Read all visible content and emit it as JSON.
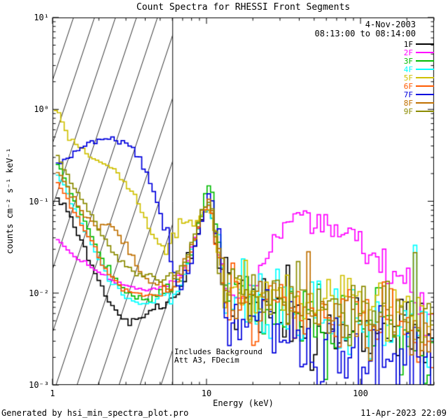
{
  "title": "Count Spectra for RHESSI Front Segments",
  "annotations": {
    "date": "4-Nov-2003",
    "interval": "08:13:00 to 08:14:00",
    "background_note": "Includes Background",
    "atten_note": "Att A3, FDecim"
  },
  "footer": {
    "left": "Generated by hsi_min_spectra_plot.pro",
    "right": "11-Apr-2023 22:09"
  },
  "axes": {
    "xlabel": "Energy (keV)",
    "ylabel": "counts cm⁻² s⁻¹ keV⁻¹",
    "x_ticks": [
      {
        "label": "1",
        "value": 1
      },
      {
        "label": "10",
        "value": 10
      },
      {
        "label": "100",
        "value": 100
      }
    ],
    "y_ticks": [
      {
        "label": "10⁻³",
        "value": 0.001
      },
      {
        "label": "10⁻²",
        "value": 0.01
      },
      {
        "label": "10⁻¹",
        "value": 0.1
      },
      {
        "label": "10⁰",
        "value": 1
      },
      {
        "label": "10¹",
        "value": 10
      }
    ]
  },
  "chart_data": {
    "type": "line",
    "mode": "histogram-steps",
    "xscale": "log",
    "yscale": "log",
    "xlim": [
      1,
      300
    ],
    "ylim": [
      0.001,
      10
    ],
    "grid": false,
    "legend_position": "top-right-inside",
    "hatched_region": {
      "xmin": 1,
      "xmax": 6
    },
    "vline_x": 6,
    "series": [
      {
        "name": "1F",
        "color": "#000000",
        "jitter": 0.5,
        "points": [
          [
            1.05,
            0.105
          ],
          [
            1.2,
            0.09
          ],
          [
            1.35,
            0.06
          ],
          [
            1.55,
            0.035
          ],
          [
            1.8,
            0.02
          ],
          [
            2.1,
            0.011
          ],
          [
            2.5,
            0.007
          ],
          [
            3.0,
            0.005
          ],
          [
            3.4,
            0.0045
          ],
          [
            4.0,
            0.006
          ],
          [
            5.0,
            0.008
          ],
          [
            6.0,
            0.01
          ],
          [
            7.0,
            0.014
          ],
          [
            8.0,
            0.028
          ],
          [
            9.0,
            0.05
          ],
          [
            10.0,
            0.08
          ],
          [
            10.6,
            0.09
          ],
          [
            11.2,
            0.05
          ],
          [
            12.0,
            0.02
          ],
          [
            13.0,
            0.01
          ],
          [
            15.0,
            0.0075
          ],
          [
            18.0,
            0.0065
          ],
          [
            25,
            0.006
          ],
          [
            40,
            0.0055
          ],
          [
            70,
            0.005
          ],
          [
            120,
            0.004
          ],
          [
            200,
            0.003
          ],
          [
            300,
            0.002
          ]
        ]
      },
      {
        "name": "2F",
        "color": "#ff00ff",
        "jitter": 0.22,
        "points": [
          [
            1.05,
            0.04
          ],
          [
            1.2,
            0.032
          ],
          [
            1.4,
            0.025
          ],
          [
            1.7,
            0.02
          ],
          [
            2.0,
            0.017
          ],
          [
            2.4,
            0.014
          ],
          [
            3.0,
            0.012
          ],
          [
            4.0,
            0.011
          ],
          [
            5.0,
            0.011
          ],
          [
            6.0,
            0.013
          ],
          [
            7.0,
            0.017
          ],
          [
            8.0,
            0.032
          ],
          [
            9.0,
            0.058
          ],
          [
            10.0,
            0.088
          ],
          [
            10.6,
            0.095
          ],
          [
            11.2,
            0.058
          ],
          [
            12.0,
            0.028
          ],
          [
            13.0,
            0.014
          ],
          [
            16.0,
            0.01
          ],
          [
            19.0,
            0.012
          ],
          [
            23,
            0.02
          ],
          [
            27,
            0.038
          ],
          [
            32,
            0.058
          ],
          [
            38,
            0.07
          ],
          [
            45,
            0.072
          ],
          [
            55,
            0.062
          ],
          [
            65,
            0.05
          ],
          [
            80,
            0.042
          ],
          [
            95,
            0.036
          ],
          [
            115,
            0.028
          ],
          [
            140,
            0.021
          ],
          [
            170,
            0.016
          ],
          [
            210,
            0.011
          ],
          [
            260,
            0.007
          ],
          [
            300,
            0.005
          ]
        ]
      },
      {
        "name": "3F",
        "color": "#00bb00",
        "jitter": 0.5,
        "points": [
          [
            1.05,
            0.28
          ],
          [
            1.2,
            0.18
          ],
          [
            1.4,
            0.1
          ],
          [
            1.7,
            0.05
          ],
          [
            2.0,
            0.028
          ],
          [
            2.4,
            0.016
          ],
          [
            3.0,
            0.01
          ],
          [
            3.5,
            0.009
          ],
          [
            4.0,
            0.0085
          ],
          [
            5.0,
            0.009
          ],
          [
            6.0,
            0.011
          ],
          [
            7.0,
            0.015
          ],
          [
            8.0,
            0.03
          ],
          [
            9.0,
            0.06
          ],
          [
            10.0,
            0.12
          ],
          [
            10.6,
            0.16
          ],
          [
            11.2,
            0.08
          ],
          [
            12.0,
            0.028
          ],
          [
            13.0,
            0.012
          ],
          [
            15.0,
            0.008
          ],
          [
            18.0,
            0.007
          ],
          [
            25,
            0.0065
          ],
          [
            40,
            0.006
          ],
          [
            70,
            0.005
          ],
          [
            120,
            0.004
          ],
          [
            200,
            0.003
          ],
          [
            300,
            0.0024
          ]
        ]
      },
      {
        "name": "4F",
        "color": "#00ffff",
        "jitter": 0.5,
        "points": [
          [
            1.05,
            0.21
          ],
          [
            1.2,
            0.14
          ],
          [
            1.4,
            0.08
          ],
          [
            1.7,
            0.04
          ],
          [
            2.0,
            0.023
          ],
          [
            2.4,
            0.013
          ],
          [
            3.0,
            0.009
          ],
          [
            3.5,
            0.008
          ],
          [
            4.0,
            0.0078
          ],
          [
            5.0,
            0.009
          ],
          [
            6.0,
            0.011
          ],
          [
            7.0,
            0.015
          ],
          [
            8.0,
            0.028
          ],
          [
            9.0,
            0.055
          ],
          [
            10.0,
            0.09
          ],
          [
            10.6,
            0.1
          ],
          [
            11.2,
            0.055
          ],
          [
            12.0,
            0.023
          ],
          [
            13.0,
            0.011
          ],
          [
            15.0,
            0.008
          ],
          [
            18.0,
            0.0075
          ],
          [
            25,
            0.007
          ],
          [
            40,
            0.0065
          ],
          [
            70,
            0.006
          ],
          [
            120,
            0.005
          ],
          [
            200,
            0.0042
          ],
          [
            300,
            0.0032
          ]
        ]
      },
      {
        "name": "5F",
        "color": "#cfc000",
        "jitter": 0.35,
        "points": [
          [
            1.02,
            1.0
          ],
          [
            1.1,
            0.92
          ],
          [
            1.2,
            0.62
          ],
          [
            1.35,
            0.45
          ],
          [
            1.55,
            0.36
          ],
          [
            1.75,
            0.31
          ],
          [
            2.0,
            0.28
          ],
          [
            2.3,
            0.25
          ],
          [
            2.6,
            0.21
          ],
          [
            3.0,
            0.16
          ],
          [
            3.4,
            0.115
          ],
          [
            3.9,
            0.07
          ],
          [
            4.4,
            0.045
          ],
          [
            5.0,
            0.034
          ],
          [
            5.5,
            0.031
          ],
          [
            6.0,
            0.036
          ],
          [
            6.5,
            0.05
          ],
          [
            7.0,
            0.06
          ],
          [
            7.6,
            0.055
          ],
          [
            8.2,
            0.052
          ],
          [
            9.0,
            0.065
          ],
          [
            10.0,
            0.082
          ],
          [
            10.6,
            0.078
          ],
          [
            11.2,
            0.05
          ],
          [
            12.0,
            0.026
          ],
          [
            13.0,
            0.014
          ],
          [
            15.0,
            0.01
          ],
          [
            18.0,
            0.009
          ],
          [
            25,
            0.009
          ],
          [
            40,
            0.009
          ],
          [
            70,
            0.008
          ],
          [
            120,
            0.007
          ],
          [
            200,
            0.006
          ],
          [
            300,
            0.005
          ]
        ]
      },
      {
        "name": "6F",
        "color": "#ff5a00",
        "jitter": 0.45,
        "points": [
          [
            1.05,
            0.17
          ],
          [
            1.2,
            0.12
          ],
          [
            1.4,
            0.075
          ],
          [
            1.7,
            0.042
          ],
          [
            2.0,
            0.025
          ],
          [
            2.4,
            0.015
          ],
          [
            3.0,
            0.011
          ],
          [
            3.5,
            0.01
          ],
          [
            4.0,
            0.0095
          ],
          [
            5.0,
            0.01
          ],
          [
            6.0,
            0.012
          ],
          [
            7.0,
            0.016
          ],
          [
            8.0,
            0.03
          ],
          [
            9.0,
            0.055
          ],
          [
            10.0,
            0.085
          ],
          [
            10.6,
            0.09
          ],
          [
            11.2,
            0.05
          ],
          [
            12.0,
            0.022
          ],
          [
            13.0,
            0.012
          ],
          [
            15.0,
            0.009
          ],
          [
            18.0,
            0.008
          ],
          [
            25,
            0.0075
          ],
          [
            40,
            0.007
          ],
          [
            70,
            0.006
          ],
          [
            120,
            0.005
          ],
          [
            200,
            0.004
          ],
          [
            300,
            0.003
          ]
        ]
      },
      {
        "name": "7F",
        "color": "#0000dd",
        "jitter": 0.5,
        "points": [
          [
            1.05,
            0.26
          ],
          [
            1.2,
            0.29
          ],
          [
            1.4,
            0.33
          ],
          [
            1.6,
            0.38
          ],
          [
            1.8,
            0.42
          ],
          [
            2.0,
            0.45
          ],
          [
            2.2,
            0.46
          ],
          [
            2.5,
            0.46
          ],
          [
            2.8,
            0.44
          ],
          [
            3.1,
            0.4
          ],
          [
            3.4,
            0.34
          ],
          [
            3.8,
            0.26
          ],
          [
            4.2,
            0.18
          ],
          [
            4.6,
            0.12
          ],
          [
            5.0,
            0.075
          ],
          [
            5.5,
            0.042
          ],
          [
            6.0,
            0.024
          ],
          [
            6.5,
            0.015
          ],
          [
            7.0,
            0.012
          ],
          [
            8.0,
            0.024
          ],
          [
            9.0,
            0.05
          ],
          [
            10.0,
            0.1
          ],
          [
            10.6,
            0.13
          ],
          [
            11.2,
            0.065
          ],
          [
            12.0,
            0.024
          ],
          [
            13.0,
            0.01
          ],
          [
            15.0,
            0.006
          ],
          [
            18.0,
            0.0045
          ],
          [
            25,
            0.0035
          ],
          [
            40,
            0.003
          ],
          [
            70,
            0.0026
          ],
          [
            120,
            0.0022
          ],
          [
            200,
            0.0018
          ],
          [
            300,
            0.0015
          ]
        ]
      },
      {
        "name": "8F",
        "color": "#c07000",
        "jitter": 0.45,
        "points": [
          [
            1.05,
            0.23
          ],
          [
            1.2,
            0.16
          ],
          [
            1.4,
            0.1
          ],
          [
            1.7,
            0.065
          ],
          [
            2.0,
            0.052
          ],
          [
            2.3,
            0.055
          ],
          [
            2.6,
            0.048
          ],
          [
            3.0,
            0.033
          ],
          [
            3.5,
            0.02
          ],
          [
            4.0,
            0.014
          ],
          [
            5.0,
            0.012
          ],
          [
            6.0,
            0.013
          ],
          [
            7.0,
            0.018
          ],
          [
            8.0,
            0.032
          ],
          [
            9.0,
            0.06
          ],
          [
            10.0,
            0.095
          ],
          [
            10.6,
            0.1
          ],
          [
            11.2,
            0.055
          ],
          [
            12.0,
            0.025
          ],
          [
            13.0,
            0.013
          ],
          [
            15.0,
            0.009
          ],
          [
            18.0,
            0.008
          ],
          [
            25,
            0.0075
          ],
          [
            40,
            0.007
          ],
          [
            70,
            0.006
          ],
          [
            120,
            0.005
          ],
          [
            200,
            0.004
          ],
          [
            300,
            0.003
          ]
        ]
      },
      {
        "name": "9F",
        "color": "#8b8b00",
        "jitter": 0.4,
        "points": [
          [
            1.05,
            0.32
          ],
          [
            1.2,
            0.23
          ],
          [
            1.4,
            0.14
          ],
          [
            1.7,
            0.08
          ],
          [
            2.0,
            0.05
          ],
          [
            2.4,
            0.03
          ],
          [
            3.0,
            0.02
          ],
          [
            3.5,
            0.016
          ],
          [
            4.0,
            0.015
          ],
          [
            5.0,
            0.014
          ],
          [
            6.0,
            0.015
          ],
          [
            7.0,
            0.02
          ],
          [
            8.0,
            0.035
          ],
          [
            9.0,
            0.065
          ],
          [
            10.0,
            0.1
          ],
          [
            10.6,
            0.105
          ],
          [
            11.2,
            0.06
          ],
          [
            12.0,
            0.028
          ],
          [
            13.0,
            0.016
          ],
          [
            15.0,
            0.012
          ],
          [
            18.0,
            0.011
          ],
          [
            25,
            0.01
          ],
          [
            40,
            0.009
          ],
          [
            70,
            0.008
          ],
          [
            120,
            0.0065
          ],
          [
            200,
            0.0055
          ],
          [
            300,
            0.0045
          ]
        ]
      }
    ]
  }
}
